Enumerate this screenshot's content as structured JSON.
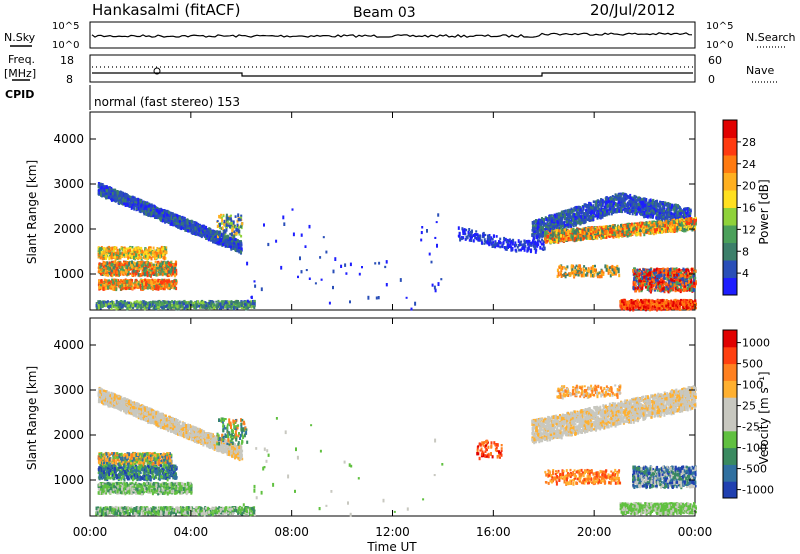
{
  "header": {
    "station": "Hankasalmi (fitACF)",
    "beam": "Beam 03",
    "date": "20/Jul/2012"
  },
  "labels": {
    "nsky": "N.Sky",
    "nsearch": "N.Search",
    "freq": "Freq.",
    "freq_unit": "[MHz]",
    "cpid": "CPID",
    "nave": "Nave",
    "cpid_text": "normal (fast stereo) 153",
    "ten5": "10^5",
    "ten0": "10^0"
  },
  "freq_ticks": [
    "18",
    "8"
  ],
  "nave_ticks": [
    "60",
    "0"
  ],
  "chart_data": [
    {
      "type": "heatmap",
      "name": "power",
      "ylabel": "Slant Range [km]",
      "yticks": [
        1000,
        2000,
        3000,
        4000
      ],
      "ylim": [
        200,
        4600
      ],
      "colorbar_label": "Power [dB]",
      "colorbar_ticks": [
        "4",
        "8",
        "12",
        "16",
        "20",
        "24",
        "28"
      ],
      "colors": [
        "#1e1eff",
        "#2a4fb8",
        "#3c7f6a",
        "#4ba05a",
        "#8fd23a",
        "#ffe020",
        "#ffb020",
        "#ff7a10",
        "#ff3a10",
        "#e00000"
      ]
    },
    {
      "type": "heatmap",
      "name": "velocity",
      "ylabel": "Slant Range [km]",
      "yticks": [
        1000,
        2000,
        3000,
        4000
      ],
      "ylim": [
        200,
        4600
      ],
      "xlabel": "Time UT",
      "xticks": [
        "00:00",
        "04:00",
        "08:00",
        "12:00",
        "16:00",
        "20:00",
        "00:00"
      ],
      "colorbar_label": "Velocity [m s⁻¹]",
      "colorbar_ticks": [
        "1000",
        "500",
        "100",
        "25",
        "-25",
        "-100",
        "-500",
        "-1000"
      ],
      "colors": [
        "#2040b0",
        "#3070a0",
        "#3a8a60",
        "#60c040",
        "#c8c8c0",
        "#c8c8c0",
        "#ffb030",
        "#ff8020",
        "#ff4010",
        "#e00000"
      ]
    }
  ]
}
